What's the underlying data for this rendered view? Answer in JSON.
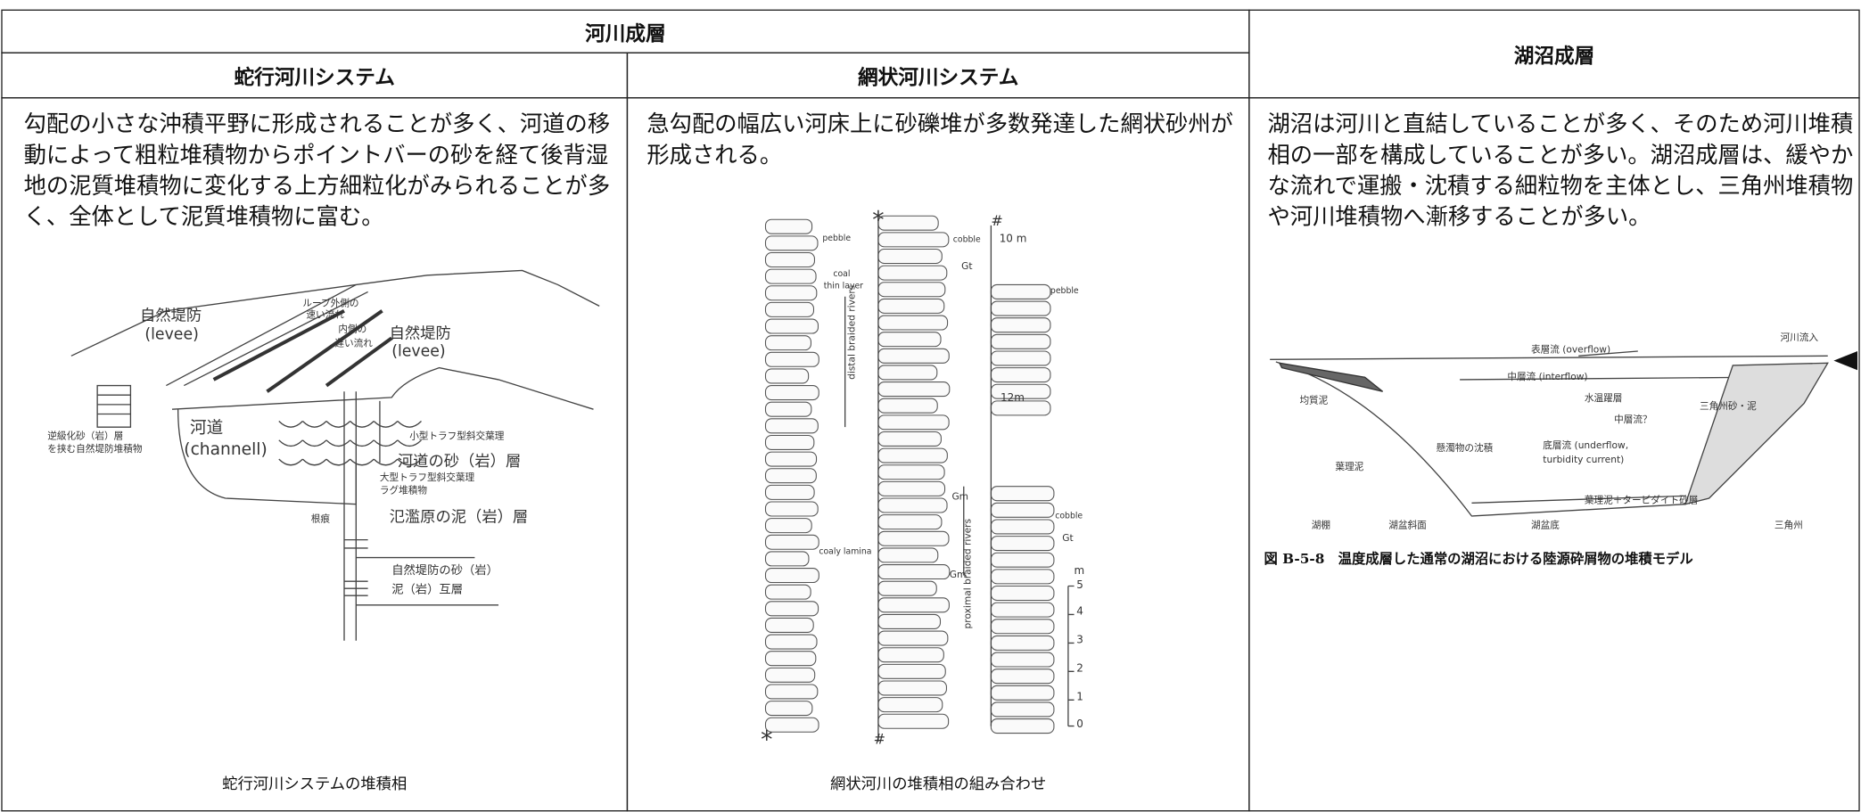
{
  "table": {
    "group_header": "河川成層",
    "columns": [
      "蛇行河川システム",
      "網状河川システム",
      "湖沼成層"
    ],
    "descriptions": [
      "勾配の小さな沖積平野に形成されることが多く、河道の移動によって粗粒堆積物からポイントバーの砂を経て後背湿地の泥質堆積物に変化する上方細粒化がみられることが多く、全体として泥質堆積物に富む。",
      "急勾配の幅広い河床上に砂礫堆が多数発達した網状砂州が形成される。",
      "湖沼は河川と直結していることが多く、そのため河川堆積相の一部を構成していることが多い。湖沼成層は、緩やかな流れで運搬・沈積する細粒物を主体とし、三角州堆積物や河川堆積物へ漸移することが多い。"
    ],
    "captions": [
      "蛇行河川システムの堆積相",
      "網状河川の堆積相の組み合わせ",
      "図 B-5-8　温度成層した通常の湖沼における陸源砕屑物の堆積モデル"
    ]
  },
  "figures": [
    {
      "labels": [
        "自然堤防",
        "(levee)",
        "ループ外側の",
        "速い流れ",
        "内側の",
        "遅い流れ",
        "自然堤防",
        "(levee)",
        "河道",
        "(channell)",
        "小型トラフ型斜交葉理",
        "河道の砂（岩）層",
        "大型トラフ型斜交葉理",
        "ラグ堆積物",
        "根痕",
        "氾濫原の泥（岩）層",
        "自然堤防の砂（岩）",
        "泥（岩）互層",
        "逆級化砂（岩）層",
        "を挟む自然堤防堆積物"
      ]
    },
    {
      "labels": [
        "pebble",
        "coal",
        "thin layer",
        "distal braided rivers",
        "coaly lamina",
        "*",
        "*",
        "#",
        "#",
        "cobble",
        "Gt",
        "10 m",
        "pebble",
        "12m",
        "Gm",
        "Gm",
        "cobble",
        "Gt",
        "proximal braided rivers",
        "m",
        "5",
        "4",
        "3",
        "2",
        "1",
        "0"
      ]
    },
    {
      "labels": [
        "河川流入",
        "表層流 (overflow)",
        "中層流 (interflow)",
        "均質泥",
        "水温躍層",
        "中層流？",
        "三角州砂・泥",
        "懸濁物の沈積",
        "底層流 (underflow,",
        "turbidity current)",
        "葉理泥",
        "葉理泥＋タービダイト砂層",
        "湖棚",
        "湖盆斜面",
        "湖盆底",
        "三角州"
      ]
    }
  ]
}
